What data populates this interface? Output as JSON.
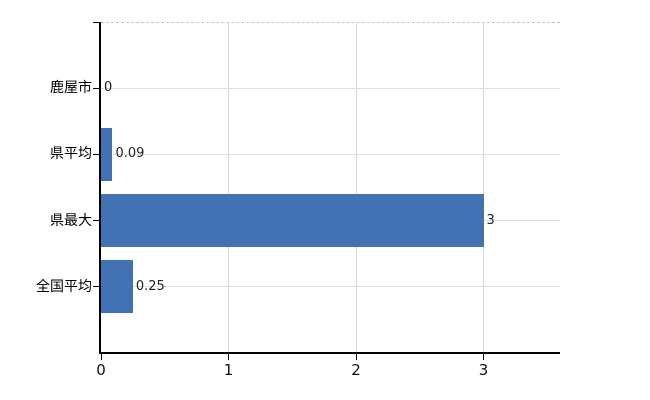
{
  "chart_data": {
    "type": "bar",
    "orientation": "horizontal",
    "title": "",
    "xlabel": "",
    "ylabel": "",
    "categories": [
      "鹿屋市",
      "県平均",
      "県最大",
      "全国平均"
    ],
    "values": [
      0,
      0.09,
      3,
      0.25
    ],
    "value_labels": [
      "0",
      "0.09",
      "3",
      "0.25"
    ],
    "x_ticks": [
      "0",
      "1",
      "2",
      "3"
    ],
    "x_tick_values": [
      0,
      1,
      2,
      3
    ],
    "xlim": [
      0,
      3.6
    ],
    "grid": true,
    "legend": false,
    "colors": {
      "bar": "#4272b4",
      "axis": "#000000",
      "h_gridline": "#dbe2db",
      "v_gridline": "#d9dcd9",
      "plot_border_top": "#c6c6c6",
      "category_text": "#000000",
      "tick_text": "#111111",
      "value_text": "#222222",
      "background": "#ffffff"
    }
  }
}
